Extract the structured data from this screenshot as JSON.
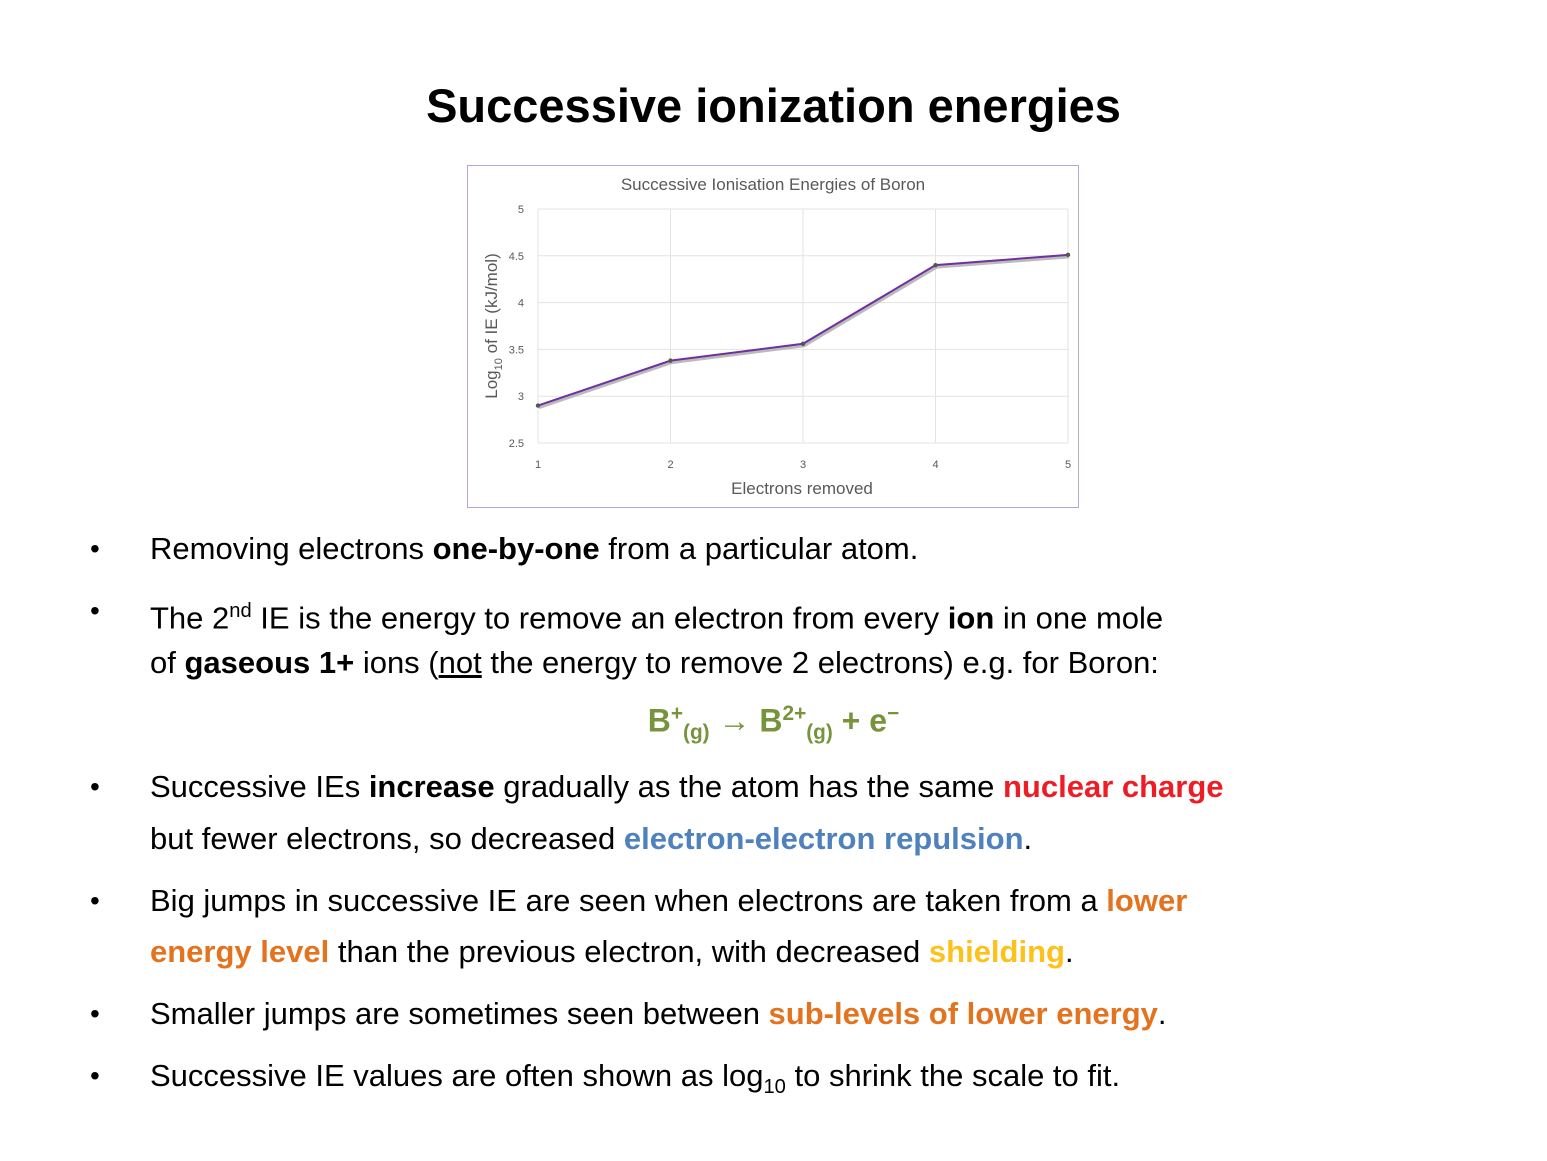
{
  "title": "Successive ionization energies",
  "chart_data": {
    "type": "line",
    "title": "Successive Ionisation Energies of Boron",
    "xlabel": "Electrons removed",
    "ylabel_main": "Log",
    "ylabel_sub": "10",
    "ylabel_rest": " of IE (kJ/mol)",
    "x": [
      1,
      2,
      3,
      4,
      5
    ],
    "values": [
      2.9,
      3.38,
      3.56,
      4.4,
      4.51
    ],
    "ylim": [
      2.5,
      5
    ],
    "xlim": [
      1,
      5
    ],
    "yticks": [
      "2.5",
      "3",
      "3.5",
      "4",
      "4.5",
      "5"
    ],
    "xticks": [
      "1",
      "2",
      "3",
      "4",
      "5"
    ],
    "grid": true,
    "line_color": "#7030a0"
  },
  "bullets": {
    "b1": {
      "t1": "Removing electrons ",
      "t2": "one-by-one",
      "t3": " from a particular atom."
    },
    "b2": {
      "t1": "The 2",
      "sup": "nd",
      "t2": " IE is the energy to remove an electron from every ",
      "t3": "ion",
      "t4": " in one mole",
      "l2a": "of ",
      "l2b": "gaseous 1+",
      "l2c": " ions (",
      "l2d": "not",
      "l2e": " the energy to remove 2 electrons) e.g. for Boron:"
    },
    "equation": {
      "b1": "B",
      "sup1": "+",
      "sub1": "(g)",
      "arrow": " → ",
      "b2": "B",
      "sup2": "2+",
      "sub2": "(g)",
      "plus": " +  e",
      "sup3": "−"
    },
    "b3": {
      "t1": "Successive IEs ",
      "t2": "increase",
      "t3": " gradually as the atom has the same ",
      "t4": "nuclear charge",
      "l2a": "but fewer electrons, so decreased ",
      "l2b": "electron-electron repulsion",
      "l2c": "."
    },
    "b4": {
      "t1": "Big jumps in successive IE are seen when electrons are taken from a ",
      "t2": "lower",
      "l2a": "energy level",
      "l2b": " than the previous electron, with decreased ",
      "l2c": "shielding",
      "l2d": "."
    },
    "b5": {
      "t1": "Smaller jumps are sometimes seen between ",
      "t2": "sub-levels of lower energy",
      "t3": "."
    },
    "b6": {
      "t1": "Successive IE values are often shown as log",
      "sub": "10",
      "t2": " to shrink the scale to fit."
    }
  },
  "bullet_char": "•"
}
